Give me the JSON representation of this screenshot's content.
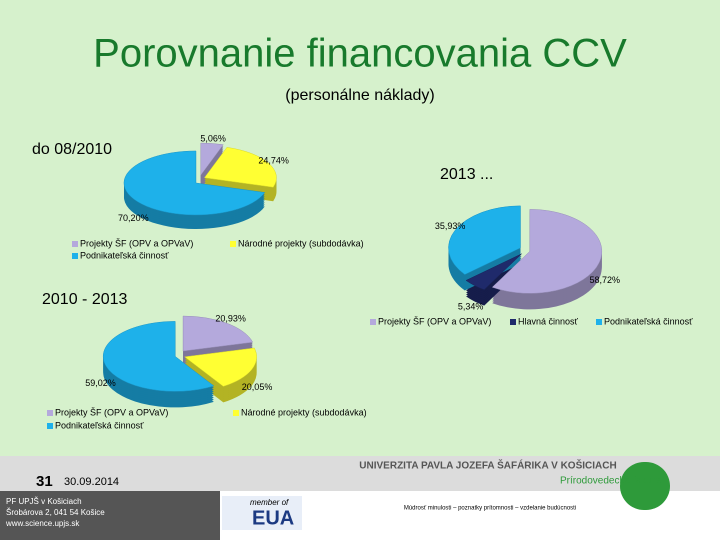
{
  "title": "Porovnanie financovania CCV",
  "subtitle": "(personálne náklady)",
  "chart_data": [
    {
      "type": "pie",
      "title": "do 08/2010",
      "categories": [
        "Projekty ŠF (OPV a OPVaV)",
        "Národné projekty (subdodávka)",
        "Podnikateľská činnosť"
      ],
      "values": [
        5.06,
        24.74,
        70.2
      ],
      "value_labels": [
        "5,06%",
        "24,74%",
        "70,20%"
      ],
      "colors": [
        "#b4a9dc",
        "#ffff33",
        "#1eb1ea"
      ]
    },
    {
      "type": "pie",
      "title": "2013 ...",
      "categories": [
        "Projekty ŠF (OPV a OPVaV)",
        "Hlavná činnosť",
        "Podnikateľská činnosť"
      ],
      "values": [
        58.72,
        5.34,
        35.93
      ],
      "value_labels": [
        "58,72%",
        "5,34%",
        "35,93%"
      ],
      "colors": [
        "#b4a9dc",
        "#1f2a6b",
        "#1eb1ea"
      ]
    },
    {
      "type": "pie",
      "title": "2010 - 2013",
      "categories": [
        "Projekty ŠF (OPV a OPVaV)",
        "Národné projekty (subdodávka)",
        "Podnikateľská činnosť"
      ],
      "values": [
        20.93,
        20.05,
        59.02
      ],
      "value_labels": [
        "20,93%",
        "20,05%",
        "59,02%"
      ],
      "colors": [
        "#b4a9dc",
        "#ffff33",
        "#1eb1ea"
      ]
    }
  ],
  "footer": {
    "page": "31",
    "date": "30.09.2014",
    "address": [
      "PF UPJŠ v Košiciach",
      "Šrobárova 2, 041 54 Košice",
      "www.science.upjs.sk"
    ],
    "university": "UNIVERZITA PAVLA JOZEFA ŠAFÁRIKA V KOŠICIACH",
    "faculty": "Prírodovedecká fakulta",
    "member": "member of",
    "eua": "EUA",
    "motto": "Múdrosť minulosti – poznatky prítomnosti – vzdelanie budúcnosti"
  }
}
